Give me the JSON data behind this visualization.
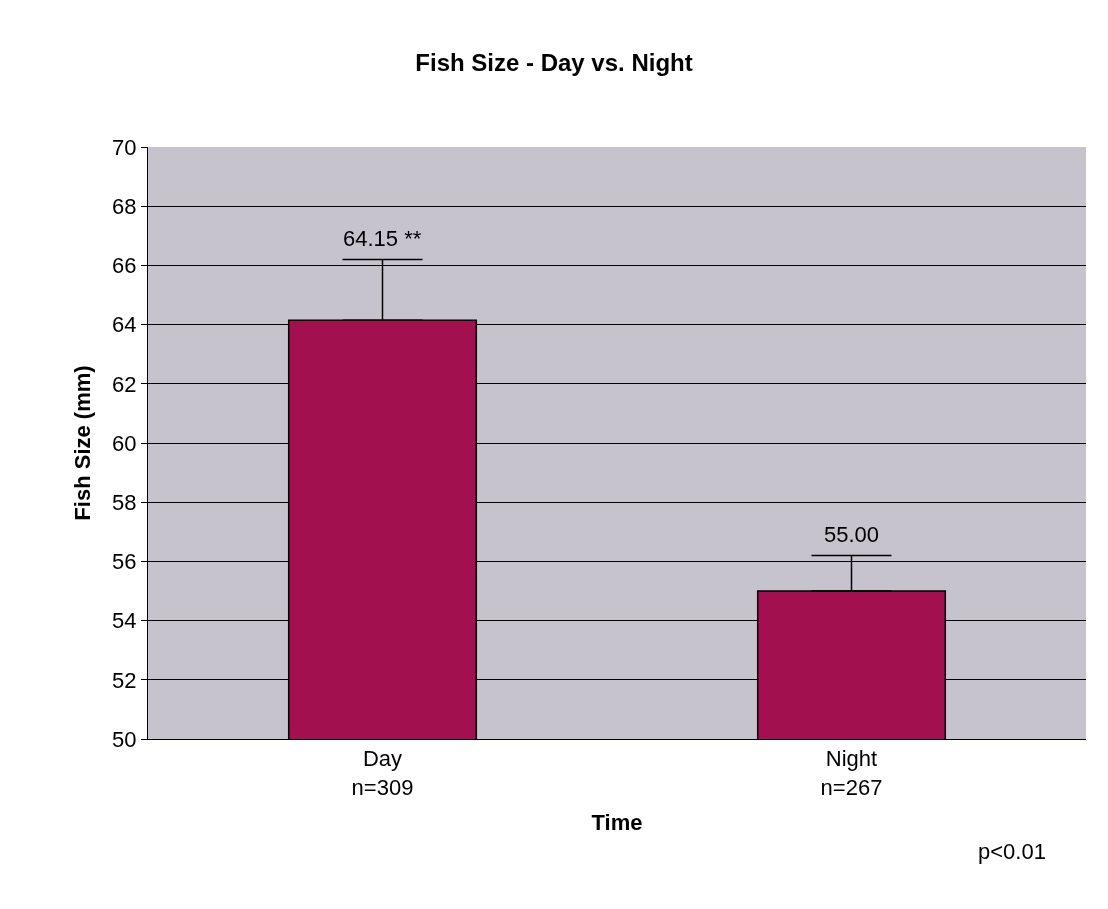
{
  "chart_data": {
    "type": "bar",
    "title": "Fish Size - Day vs. Night",
    "xlabel": "Time",
    "ylabel": "Fish Size (mm)",
    "categories": [
      "Day\nn=309",
      "Night\nn=267"
    ],
    "series": [
      {
        "color": "#a3104f",
        "values": [
          64.15,
          55.0
        ],
        "errors": [
          [
            64.15,
            66.2
          ],
          [
            55.0,
            56.2
          ]
        ],
        "value_labels": [
          "64.15 **",
          "55.00"
        ]
      }
    ],
    "ylim": [
      50,
      70
    ],
    "yticks": [
      50,
      52,
      54,
      56,
      58,
      60,
      62,
      64,
      66,
      68,
      70
    ],
    "grid": "y",
    "annotations": [
      "p<0.01"
    ]
  }
}
